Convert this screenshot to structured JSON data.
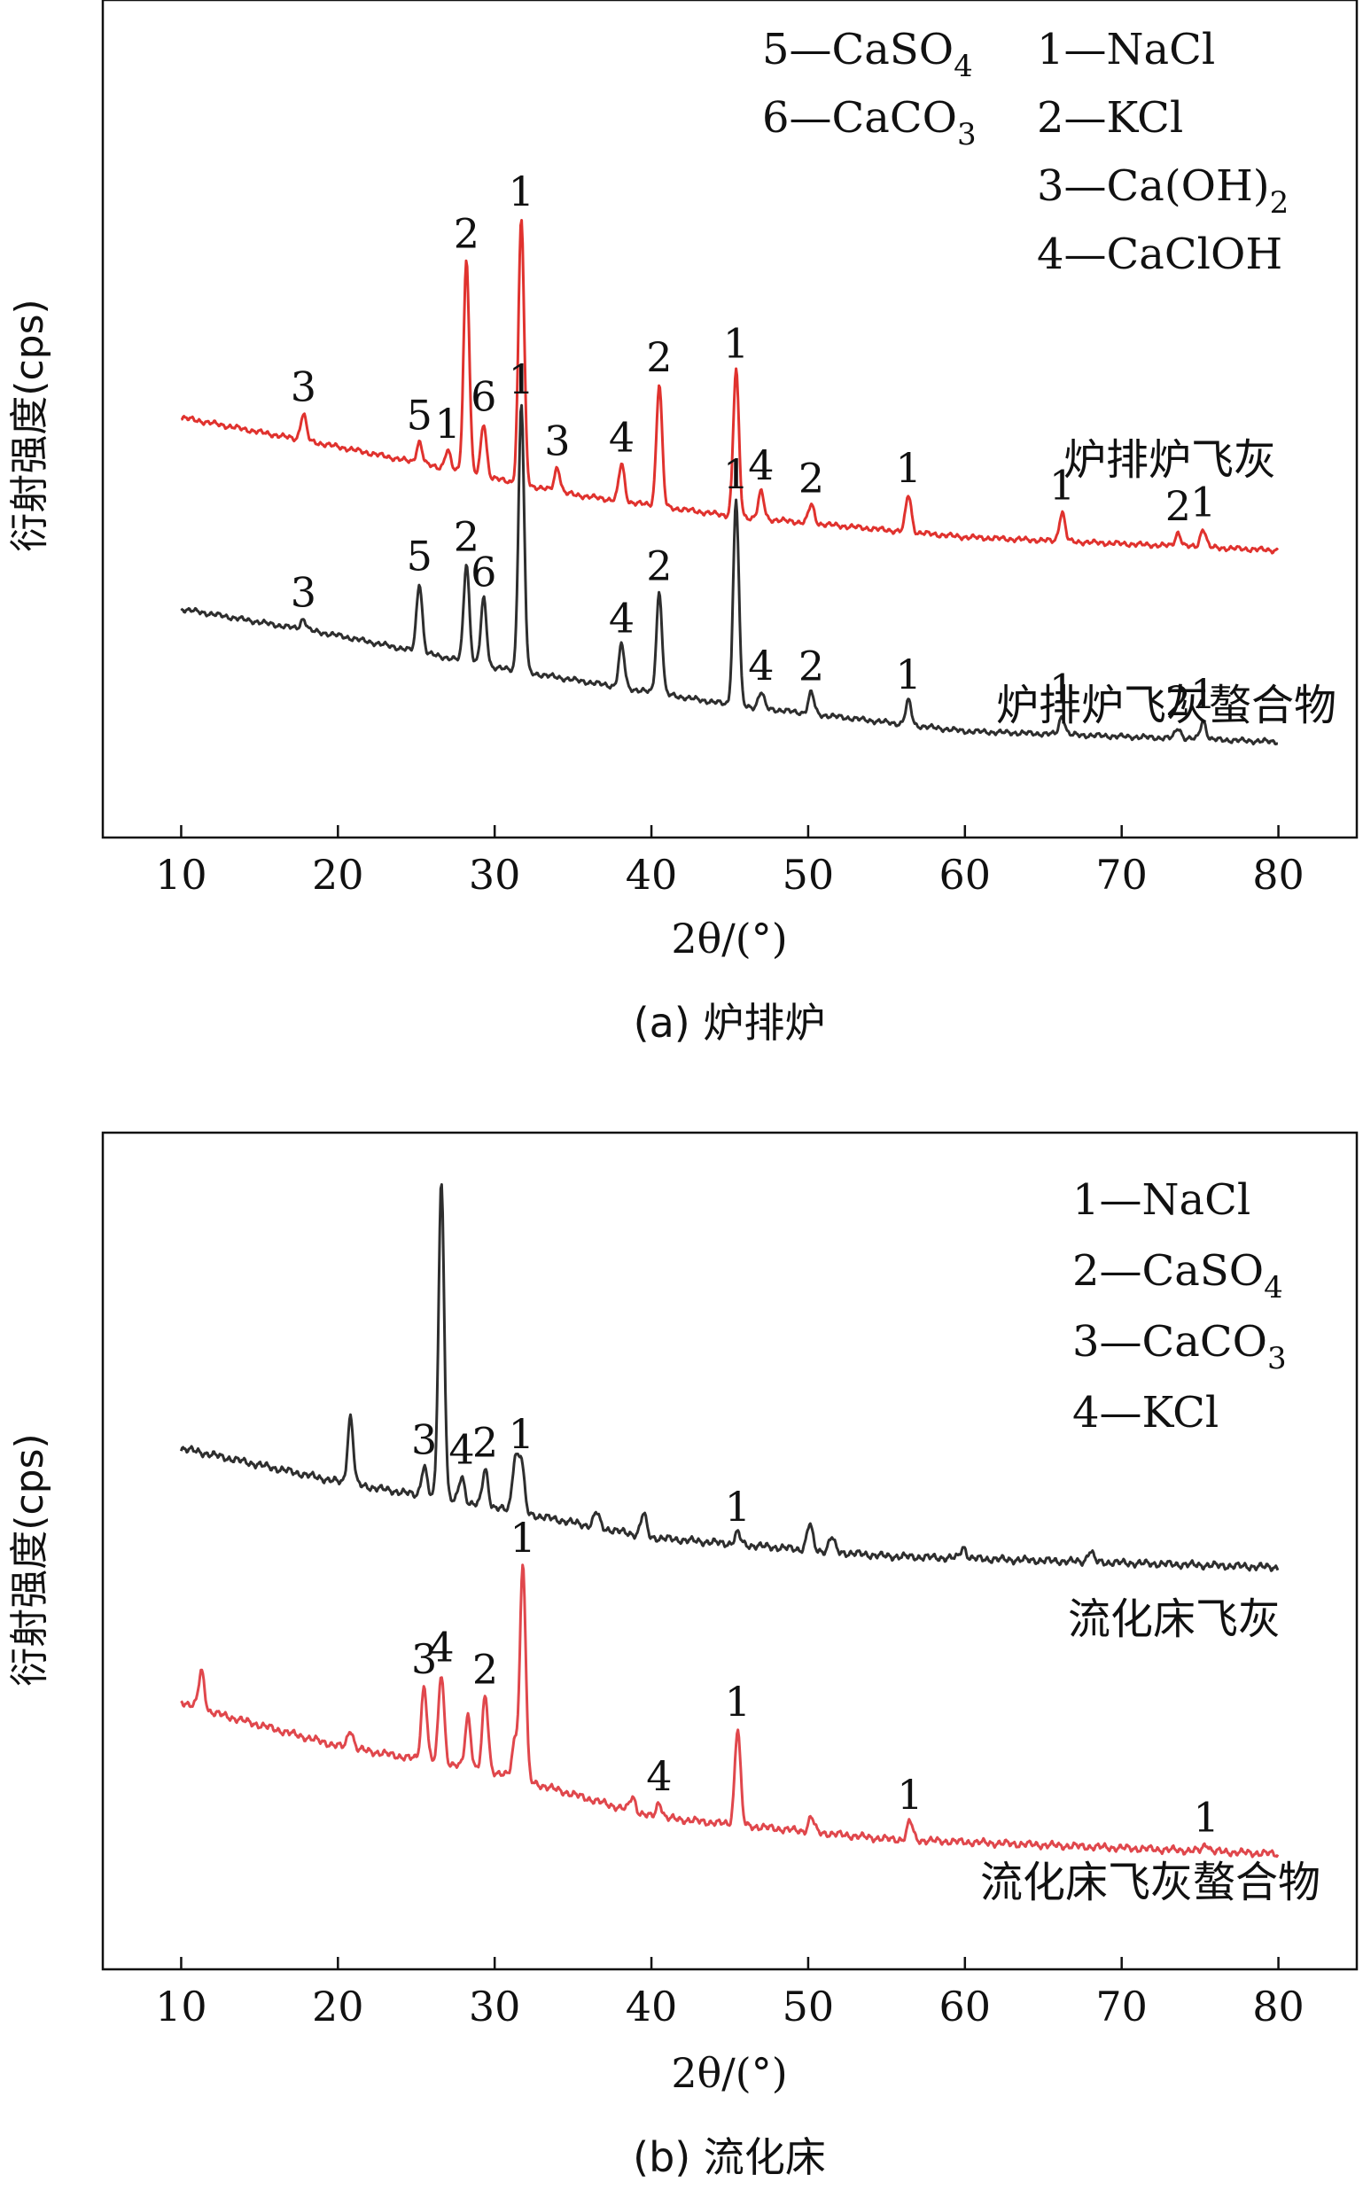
{
  "chart_data": [
    {
      "type": "line",
      "caption": "(a) 炉排炉",
      "xlabel": "2θ/(°)",
      "ylabel": "衍射强度(cps)",
      "xlim": [
        5,
        85
      ],
      "xticks": [
        "10",
        "20",
        "30",
        "40",
        "50",
        "60",
        "70",
        "80"
      ],
      "grid": false,
      "legend_position": "top-right",
      "legend": [
        {
          "num": "5",
          "name": "CaSO",
          "sub": "4"
        },
        {
          "num": "6",
          "name": "CaCO",
          "sub": "3"
        },
        {
          "num": "1",
          "name": "NaCl",
          "sub": ""
        },
        {
          "num": "2",
          "name": "KCl",
          "sub": ""
        },
        {
          "num": "3",
          "name": "Ca(OH)",
          "sub": "2"
        },
        {
          "num": "4",
          "name": "CaClOH",
          "sub": ""
        }
      ],
      "series": [
        {
          "name": "炉排炉飞灰",
          "color": "#e0322e",
          "baseline": [
            [
              10,
              1.58
            ],
            [
              20,
              1.47
            ],
            [
              35,
              1.29
            ],
            [
              45,
              1.21
            ],
            [
              60,
              1.13
            ],
            [
              80,
              1.08
            ]
          ],
          "peaks": [
            {
              "x": 17.8,
              "h": 0.1,
              "label": "3"
            },
            {
              "x": 25.2,
              "h": 0.08,
              "label": "5"
            },
            {
              "x": 27.0,
              "h": 0.07,
              "label": "1"
            },
            {
              "x": 28.2,
              "h": 0.8,
              "label": "2"
            },
            {
              "x": 29.3,
              "h": 0.2,
              "label": "6"
            },
            {
              "x": 31.7,
              "h": 1.0,
              "label": "1"
            },
            {
              "x": 34.0,
              "h": 0.09,
              "label": "3"
            },
            {
              "x": 38.1,
              "h": 0.14,
              "label": "4"
            },
            {
              "x": 40.5,
              "h": 0.46,
              "label": "2"
            },
            {
              "x": 45.4,
              "h": 0.55,
              "label": "1"
            },
            {
              "x": 47.0,
              "h": 0.1,
              "label": "4"
            },
            {
              "x": 50.2,
              "h": 0.07,
              "label": "2"
            },
            {
              "x": 56.4,
              "h": 0.14,
              "label": "1"
            },
            {
              "x": 66.2,
              "h": 0.11,
              "label": "1"
            },
            {
              "x": 73.6,
              "h": 0.05,
              "label": "2"
            },
            {
              "x": 75.2,
              "h": 0.07,
              "label": "1"
            }
          ]
        },
        {
          "name": "炉排炉飞灰螯合物",
          "color": "#2e2e2e",
          "baseline": [
            [
              10,
              0.86
            ],
            [
              20,
              0.76
            ],
            [
              30,
              0.64
            ],
            [
              45,
              0.5
            ],
            [
              60,
              0.4
            ],
            [
              80,
              0.36
            ]
          ],
          "peaks": [
            {
              "x": 17.8,
              "h": 0.04,
              "label": "3"
            },
            {
              "x": 25.2,
              "h": 0.26,
              "label": "5"
            },
            {
              "x": 28.2,
              "h": 0.37,
              "label": "2"
            },
            {
              "x": 29.3,
              "h": 0.25,
              "label": "6"
            },
            {
              "x": 31.7,
              "h": 1.0,
              "label": "1"
            },
            {
              "x": 38.1,
              "h": 0.16,
              "label": "4"
            },
            {
              "x": 40.5,
              "h": 0.38,
              "label": "2"
            },
            {
              "x": 45.4,
              "h": 0.77,
              "label": "1"
            },
            {
              "x": 47.0,
              "h": 0.06,
              "label": "4"
            },
            {
              "x": 50.2,
              "h": 0.08,
              "label": "2"
            },
            {
              "x": 56.4,
              "h": 0.09,
              "label": "1"
            },
            {
              "x": 66.2,
              "h": 0.07,
              "label": "1"
            },
            {
              "x": 73.6,
              "h": 0.04,
              "label": "2"
            },
            {
              "x": 75.2,
              "h": 0.07,
              "label": "1"
            }
          ]
        }
      ]
    },
    {
      "type": "line",
      "caption": "(b) 流化床",
      "xlabel": "2θ/(°)",
      "ylabel": "衍射强度(cps)",
      "xlim": [
        5,
        85
      ],
      "xticks": [
        "10",
        "20",
        "30",
        "40",
        "50",
        "60",
        "70",
        "80"
      ],
      "grid": false,
      "legend_position": "top-right",
      "legend": [
        {
          "num": "1",
          "name": "NaCl",
          "sub": ""
        },
        {
          "num": "2",
          "name": "CaSO",
          "sub": "4"
        },
        {
          "num": "3",
          "name": "CaCO",
          "sub": "3"
        },
        {
          "num": "4",
          "name": "KCl",
          "sub": ""
        }
      ],
      "series": [
        {
          "name": "流化床飞灰",
          "color": "#2e2e2e",
          "baseline": [
            [
              10,
              1.4
            ],
            [
              20,
              1.31
            ],
            [
              30,
              1.24
            ],
            [
              40,
              1.16
            ],
            [
              55,
              1.11
            ],
            [
              80,
              1.08
            ]
          ],
          "peaks": [
            {
              "x": 20.8,
              "h": 0.18,
              "label": ""
            },
            {
              "x": 25.5,
              "h": 0.08,
              "label": "3"
            },
            {
              "x": 26.6,
              "h": 0.85,
              "label": ""
            },
            {
              "x": 27.9,
              "h": 0.07,
              "label": "4"
            },
            {
              "x": 29.4,
              "h": 0.1,
              "label": "2"
            },
            {
              "x": 31.3,
              "h": 0.14,
              "label": ""
            },
            {
              "x": 31.7,
              "h": 0.14,
              "label": "1"
            },
            {
              "x": 36.5,
              "h": 0.04,
              "label": ""
            },
            {
              "x": 39.5,
              "h": 0.06,
              "label": ""
            },
            {
              "x": 45.5,
              "h": 0.03,
              "label": "1"
            },
            {
              "x": 50.1,
              "h": 0.07,
              "label": ""
            },
            {
              "x": 51.5,
              "h": 0.04,
              "label": ""
            },
            {
              "x": 59.9,
              "h": 0.03,
              "label": ""
            },
            {
              "x": 68.0,
              "h": 0.03,
              "label": ""
            }
          ]
        },
        {
          "name": "流化床飞灰螯合物",
          "color": "#e0474c",
          "baseline": [
            [
              10,
              0.72
            ],
            [
              12,
              0.69
            ],
            [
              20,
              0.6
            ],
            [
              30,
              0.53
            ],
            [
              40,
              0.41
            ],
            [
              55,
              0.35
            ],
            [
              80,
              0.31
            ]
          ],
          "peaks": [
            {
              "x": 11.3,
              "h": 0.1,
              "label": ""
            },
            {
              "x": 20.8,
              "h": 0.05,
              "label": ""
            },
            {
              "x": 25.5,
              "h": 0.2,
              "label": "3"
            },
            {
              "x": 26.6,
              "h": 0.24,
              "label": "4"
            },
            {
              "x": 28.3,
              "h": 0.14,
              "label": ""
            },
            {
              "x": 29.4,
              "h": 0.2,
              "label": "2"
            },
            {
              "x": 31.3,
              "h": 0.1,
              "label": ""
            },
            {
              "x": 31.8,
              "h": 0.58,
              "label": "1"
            },
            {
              "x": 38.8,
              "h": 0.04,
              "label": ""
            },
            {
              "x": 40.5,
              "h": 0.04,
              "label": "4"
            },
            {
              "x": 45.5,
              "h": 0.26,
              "label": "1"
            },
            {
              "x": 50.2,
              "h": 0.04,
              "label": ""
            },
            {
              "x": 56.5,
              "h": 0.05,
              "label": "1"
            },
            {
              "x": 75.4,
              "h": 0.02,
              "label": "1"
            }
          ]
        }
      ]
    }
  ]
}
